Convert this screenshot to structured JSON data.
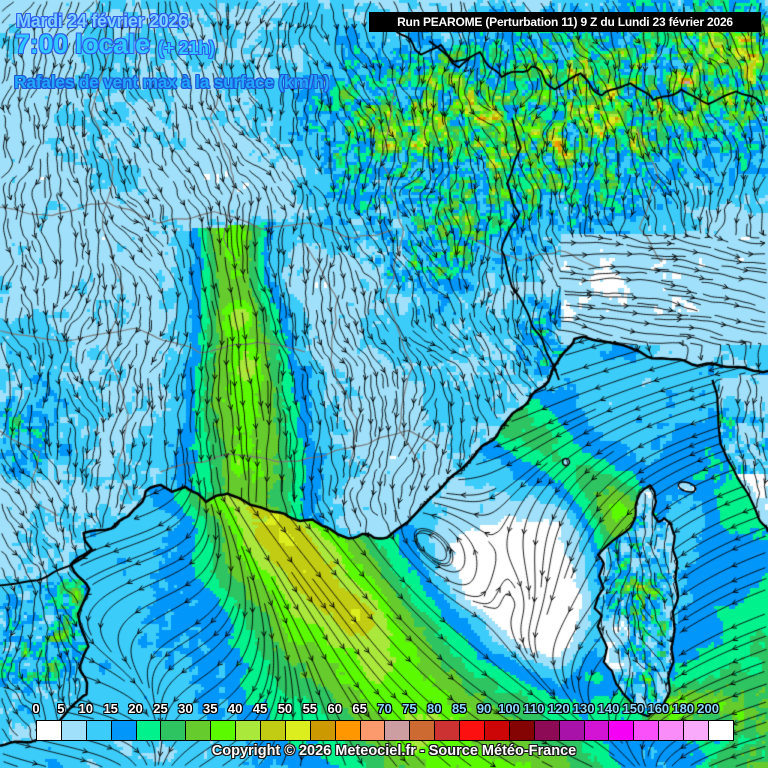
{
  "header": {
    "date": "Mardi 24 février 2026",
    "time": "7:00 locale",
    "forecast_offset": "(+ 21h)",
    "subtitle": "Rafales de vent max à la surface (km/h)"
  },
  "run_banner": {
    "text": "Run PEAROME (Perturbation 11) 9 Z du Lundi 23 février 2026"
  },
  "footer": {
    "copyright": "Copyright © 2026 Meteociel.fr - Source Météo-France"
  },
  "colorbar": {
    "unit": "km/h",
    "tick_labels": [
      "0",
      "5",
      "10",
      "15",
      "20",
      "25",
      "30",
      "35",
      "40",
      "45",
      "50",
      "55",
      "60",
      "65",
      "70",
      "75",
      "80",
      "85",
      "90",
      "100",
      "110",
      "120",
      "130",
      "140",
      "150",
      "160",
      "180",
      "200"
    ],
    "thresholds": [
      0,
      5,
      10,
      15,
      20,
      25,
      30,
      35,
      40,
      45,
      50,
      55,
      60,
      65,
      70,
      75,
      80,
      85,
      90,
      100,
      110,
      120,
      130,
      140,
      150,
      160,
      180,
      200
    ],
    "cell_colors": [
      "#FFFFFF",
      "#A0E0FA",
      "#3CCCFA",
      "#0096FA",
      "#00F28C",
      "#2EC462",
      "#66CC2E",
      "#5CFA00",
      "#AAE83C",
      "#C2CC12",
      "#DCEE1E",
      "#CC9A00",
      "#FF9800",
      "#FC9A6E",
      "#CC9EA2",
      "#CC6A32",
      "#CC3232",
      "#FC1010",
      "#CC0606",
      "#840404",
      "#8C0A56",
      "#A812A8",
      "#D414D4",
      "#F500F5",
      "#FA50FA",
      "#FA8CFA",
      "#FAAAFA",
      "#FFFFFF"
    ],
    "tick_color_low": "#FFFFFF",
    "tick_color_high": "#8CD9FF",
    "tick_color_switch_index": 14
  },
  "map": {
    "coast_color": "#000000",
    "inner_border_color": "#7b7b7b",
    "streamline_color": "#000000"
  }
}
